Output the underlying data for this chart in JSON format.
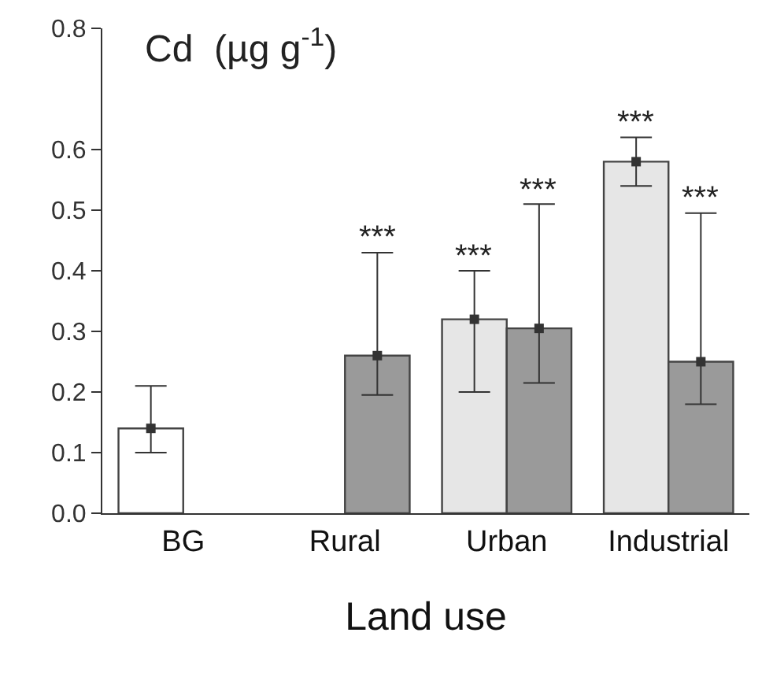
{
  "chart_data": {
    "type": "bar",
    "title": "Cd  (µg g$^{-1}$)",
    "xlabel": "Land use",
    "categories": [
      "BG",
      "Rural",
      "Urban",
      "Industrial"
    ],
    "series": [
      {
        "colors": [
          "#ffffff",
          null,
          "#e6e6e6",
          "#e6e6e6"
        ],
        "values": [
          0.14,
          null,
          0.32,
          0.58
        ],
        "errors": [
          [
            0.1,
            0.21
          ],
          null,
          [
            0.2,
            0.4
          ],
          [
            0.54,
            0.62
          ]
        ]
      },
      {
        "color": "#9a9a9a",
        "values": [
          null,
          0.26,
          0.305,
          0.25
        ],
        "errors": [
          null,
          [
            0.195,
            0.43
          ],
          [
            0.215,
            0.51
          ],
          [
            0.18,
            0.495
          ]
        ]
      }
    ],
    "annotations": [
      "***",
      "***",
      "***",
      "***",
      "***"
    ],
    "ylim": [
      0,
      0.8
    ],
    "yticks": [
      {
        "value": 0,
        "label": "0.0"
      },
      0.1,
      0.2,
      0.3,
      0.4,
      0.5,
      0.6,
      0.8
    ],
    "marker": "square",
    "grid": false,
    "legend": false
  }
}
